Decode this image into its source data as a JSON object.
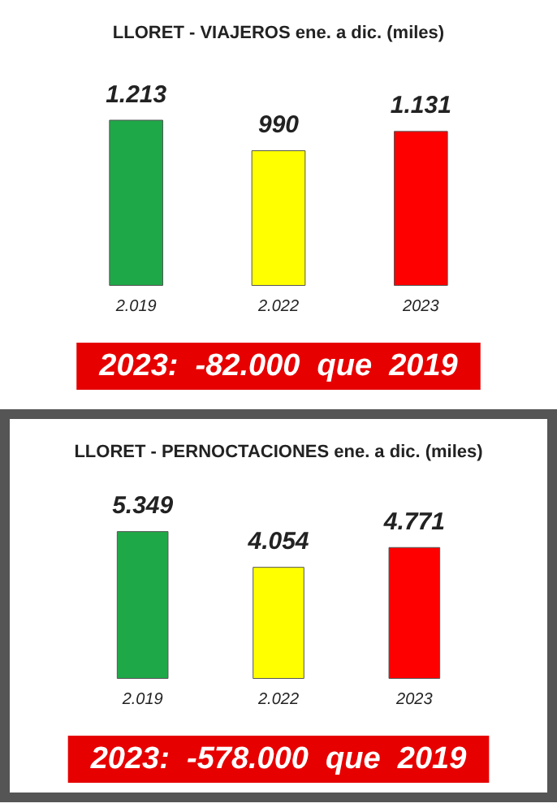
{
  "chart_data": [
    {
      "type": "bar",
      "title": "LLORET - VIAJEROS ene. a dic. (miles)",
      "categories": [
        "2.019",
        "2.022",
        "2023"
      ],
      "values": [
        1213,
        990,
        1131
      ],
      "value_labels": [
        "1.213",
        "990",
        "1.131"
      ],
      "colors": [
        "#1fa847",
        "#ffff00",
        "#ff0000"
      ],
      "annotations": [
        "2023:  -82.000  que  2019"
      ]
    },
    {
      "type": "bar",
      "title": "LLORET - PERNOCTACIONES ene. a dic. (miles)",
      "categories": [
        "2.019",
        "2.022",
        "2023"
      ],
      "values": [
        5349,
        4054,
        4771
      ],
      "value_labels": [
        "5.349",
        "4.054",
        "4.771"
      ],
      "colors": [
        "#1fa847",
        "#ffff00",
        "#ff0000"
      ],
      "annotations": [
        "2023:  -578.000  que  2019"
      ]
    }
  ]
}
